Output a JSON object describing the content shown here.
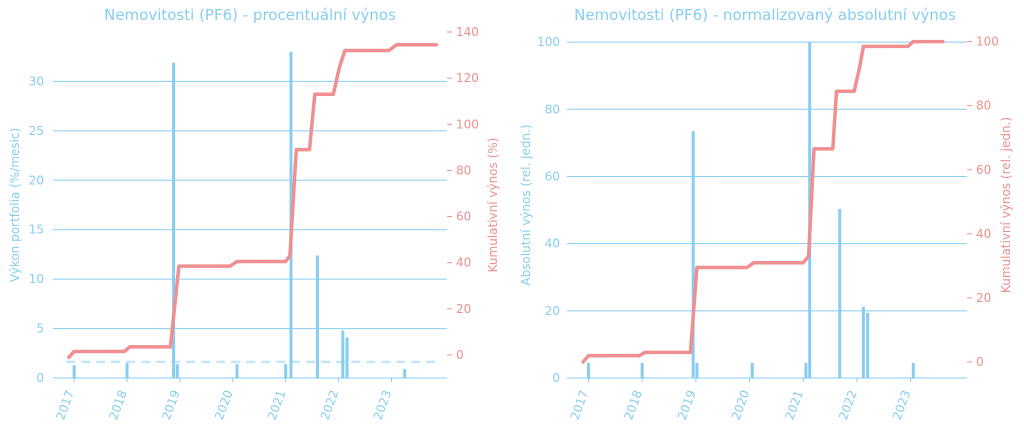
{
  "colors": {
    "bar": "#87cdf1",
    "grid": "#87cdf1",
    "line": "#ef8f8f",
    "zero_line": "#c5e6f8"
  },
  "chart_data": [
    {
      "type": "bar",
      "title": "Nemovitosti (PF6) - procentuální výnos",
      "ylabel": "Výkon portfolia (%/mesic)",
      "y2label": "Kumulativní výnos (%)",
      "ylim": [
        0,
        35
      ],
      "y2lim": [
        -10,
        140
      ],
      "yticks": [
        0,
        5,
        10,
        15,
        20,
        25,
        30
      ],
      "y2ticks": [
        0,
        20,
        40,
        60,
        80,
        100,
        120,
        140
      ],
      "xlim": [
        2016.6,
        2024.05
      ],
      "xticks": [
        "2017",
        "2018",
        "2019",
        "2020",
        "2021",
        "2022",
        "2023"
      ],
      "grid": true,
      "dashed_reference_y2": -3,
      "bars": [
        {
          "x": 2017.0,
          "y": 1.3
        },
        {
          "x": 2018.0,
          "y": 1.5
        },
        {
          "x": 2018.88,
          "y": 31.9
        },
        {
          "x": 2018.95,
          "y": 1.4
        },
        {
          "x": 2020.08,
          "y": 1.4
        },
        {
          "x": 2021.0,
          "y": 1.4
        },
        {
          "x": 2021.1,
          "y": 33.0
        },
        {
          "x": 2021.6,
          "y": 12.4
        },
        {
          "x": 2022.08,
          "y": 4.8
        },
        {
          "x": 2022.16,
          "y": 4.1
        },
        {
          "x": 2023.25,
          "y": 0.9
        }
      ],
      "series": [
        {
          "x": [
            2016.9,
            2017.0,
            2017.95,
            2018.05,
            2018.82,
            2018.98,
            2019.95,
            2020.08,
            2021.0,
            2021.08,
            2021.2,
            2021.45,
            2021.55,
            2021.9,
            2022.02,
            2022.12,
            2022.95,
            2023.1,
            2023.85
          ],
          "y": [
            -1,
            1.5,
            1.5,
            3.5,
            3.5,
            38.5,
            38.5,
            40.5,
            40.5,
            43,
            89,
            89,
            113,
            113,
            125,
            132,
            132,
            134.5,
            134.5
          ]
        }
      ]
    },
    {
      "type": "bar",
      "title": "Nemovitosti (PF6) - normalizovaný absolutní výnos",
      "ylabel": "Absolutní výnos (rel. jedn.)",
      "y2label": "Kumulativní výnos (rel. jedn.)",
      "ylim": [
        0,
        103
      ],
      "y2lim": [
        -5,
        103
      ],
      "yticks": [
        0,
        20,
        40,
        60,
        80,
        100
      ],
      "y2ticks": [
        0,
        20,
        40,
        60,
        80,
        100
      ],
      "xlim": [
        2016.6,
        2024.05
      ],
      "xticks": [
        "2017",
        "2018",
        "2019",
        "2020",
        "2021",
        "2022",
        "2023"
      ],
      "grid": true,
      "bars": [
        {
          "x": 2017.0,
          "y": 4.5
        },
        {
          "x": 2018.0,
          "y": 4.5
        },
        {
          "x": 2018.95,
          "y": 73.5
        },
        {
          "x": 2019.02,
          "y": 4.5
        },
        {
          "x": 2020.05,
          "y": 4.5
        },
        {
          "x": 2021.05,
          "y": 4.5
        },
        {
          "x": 2021.12,
          "y": 100
        },
        {
          "x": 2021.68,
          "y": 50.3
        },
        {
          "x": 2022.12,
          "y": 21.2
        },
        {
          "x": 2022.2,
          "y": 19.4
        },
        {
          "x": 2023.05,
          "y": 4.5
        }
      ],
      "series": [
        {
          "x": [
            2016.9,
            2017.0,
            2017.95,
            2018.05,
            2018.9,
            2019.02,
            2019.95,
            2020.08,
            2021.0,
            2021.1,
            2021.2,
            2021.55,
            2021.62,
            2021.95,
            2022.05,
            2022.12,
            2022.95,
            2023.05,
            2023.6
          ],
          "y": [
            0,
            2,
            2,
            3,
            3,
            29.5,
            29.5,
            31,
            31,
            33,
            66.5,
            66.5,
            84.5,
            84.5,
            92,
            98.5,
            98.5,
            100,
            100
          ]
        }
      ]
    }
  ]
}
